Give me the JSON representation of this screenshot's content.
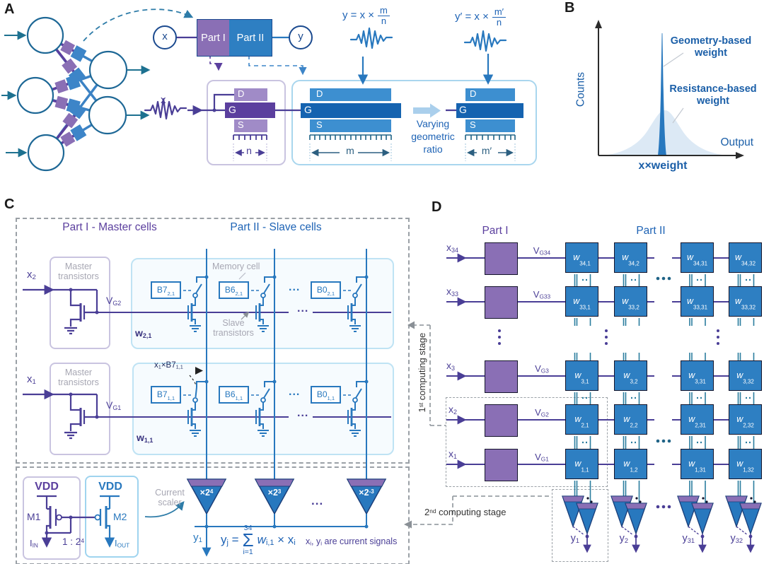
{
  "figure": {
    "a": "A",
    "b": "B",
    "c": "C",
    "d": "D"
  },
  "panel_a": {
    "x_node": "x",
    "y_node": "y",
    "part1": "Part I",
    "part2": "Part II",
    "x_signal": "x",
    "eq1": {
      "lhs": "y = x ×",
      "num": "m",
      "den": "n"
    },
    "eq2": {
      "lhs": "y′ = x ×",
      "num": "m′",
      "den": "n"
    },
    "t_master": {
      "d": "D",
      "g": "G",
      "s": "S",
      "width": "n"
    },
    "t_slave": {
      "d": "D",
      "g": "G",
      "s": "S",
      "width": "m"
    },
    "t_slave2": {
      "d": "D",
      "g": "G",
      "s": "S",
      "width": "m′"
    },
    "varying": [
      "Varying",
      "geometric",
      "ratio"
    ]
  },
  "panel_b": {
    "ylabel": "Counts",
    "xlabel": "Output",
    "xvalue": "x×weight",
    "geometry": [
      "Geometry-based",
      "weight"
    ],
    "resistance": [
      "Resistance-based",
      "weight"
    ]
  },
  "panel_c": {
    "part1_title": "Part I - Master cells",
    "part2_title": "Part II - Slave cells",
    "master_label": [
      "Master",
      "transistors"
    ],
    "memory_cell": "Memory cell",
    "slave_label": [
      "Slave",
      "transistors"
    ],
    "dots": "...",
    "rows": [
      {
        "x": "x<sub>2</sub>",
        "vg": "V<sub>G2</sub>",
        "w": "w<sub>2,1</sub>",
        "cells": [
          "B7<sub>2,1</sub>",
          "B6<sub>2,1</sub>",
          "B0<sub>2,1</sub>"
        ]
      },
      {
        "x": "x<sub>1</sub>",
        "vg": "V<sub>G1</sub>",
        "w": "w<sub>1,1</sub>",
        "cells": [
          "B7<sub>1,1</sub>",
          "B6<sub>1,1</sub>",
          "B0<sub>1,1</sub>"
        ],
        "annotation": "x<sub>1</sub>×B7<sub>1,1</sub>"
      }
    ],
    "mirror": {
      "vdd1": "VDD",
      "vdd2": "VDD",
      "m1": "M1",
      "m2": "M2",
      "iin": "I<sub>IN</sub>",
      "iout": "I<sub>OUT</sub>",
      "ratio": "1 : 2<sup>4</sup>"
    },
    "current_scaler": [
      "Current",
      "scaler"
    ],
    "scalers": [
      "×2<sup>4</sup>",
      "×2<sup>3</sup>",
      "×2<sup>-3</sup>"
    ],
    "y1": "y<sub>1</sub>",
    "equation": {
      "lhs": "y<sub>j</sub> =",
      "sum_top": "34",
      "sigma": "Σ",
      "sum_bot": "i=1",
      "rhs": "<i>w</i><sub>i,1</sub> × x<sub>i</sub>"
    },
    "note": "x<sub>i</sub>, y<sub>i</sub> are current signals",
    "stage1": "1<sup>st</sup> computing stage",
    "stage2": "2<sup>nd</sup> computing stage"
  },
  "panel_d": {
    "part1": "Part I",
    "part2": "Part II",
    "rows": [
      {
        "x": "x<sub>34</sub>",
        "vg": "V<sub>G34</sub>",
        "cells": [
          "<i>w</i><sub>34,1</sub>",
          "<i>w</i><sub>34,2</sub>",
          "<i>w</i><sub>34,31</sub>",
          "<i>w</i><sub>34,32</sub>"
        ]
      },
      {
        "x": "x<sub>33</sub>",
        "vg": "V<sub>G33</sub>",
        "cells": [
          "<i>w</i><sub>33,1</sub>",
          "<i>w</i><sub>33,2</sub>",
          "<i>w</i><sub>33,31</sub>",
          "<i>w</i><sub>33,32</sub>"
        ]
      },
      {
        "x": "x<sub>3</sub>",
        "vg": "V<sub>G3</sub>",
        "cells": [
          "<i>w</i><sub>3,1</sub>",
          "<i>w</i><sub>3,2</sub>",
          "<i>w</i><sub>3,31</sub>",
          "<i>w</i><sub>3,32</sub>"
        ]
      },
      {
        "x": "x<sub>2</sub>",
        "vg": "V<sub>G2</sub>",
        "cells": [
          "<i>w</i><sub>2,1</sub>",
          "<i>w</i><sub>2,2</sub>",
          "<i>w</i><sub>2,31</sub>",
          "<i>w</i><sub>2,32</sub>"
        ]
      },
      {
        "x": "x<sub>1</sub>",
        "vg": "V<sub>G1</sub>",
        "cells": [
          "<i>w</i><sub>1,1</sub>",
          "<i>w</i><sub>1,2</sub>",
          "<i>w</i><sub>1,31</sub>",
          "<i>w</i><sub>1,32</sub>"
        ]
      }
    ],
    "outputs": [
      "y<sub>1</sub>",
      "y<sub>2</sub>",
      "y<sub>31</sub>",
      "y<sub>32</sub>"
    ]
  },
  "colors": {
    "purple": "#8a6fb5",
    "deep_purple": "#5b3f9e",
    "indigo": "#4a3e96",
    "blue": "#2878be",
    "cell_blue": "#2e7fc2",
    "mid_blue": "#3d8fd0",
    "dark_blue": "#1563b0",
    "navy": "#1b3f7a",
    "light_blue_border": "#a9d6ee",
    "teal": "#1d7190",
    "teal_line": "#2b7d9e",
    "gray_dash": "#9aa0a6",
    "label_gray": "#a7a7b3",
    "axis": "#2b2b2b",
    "text_blue": "#1e63b5"
  }
}
